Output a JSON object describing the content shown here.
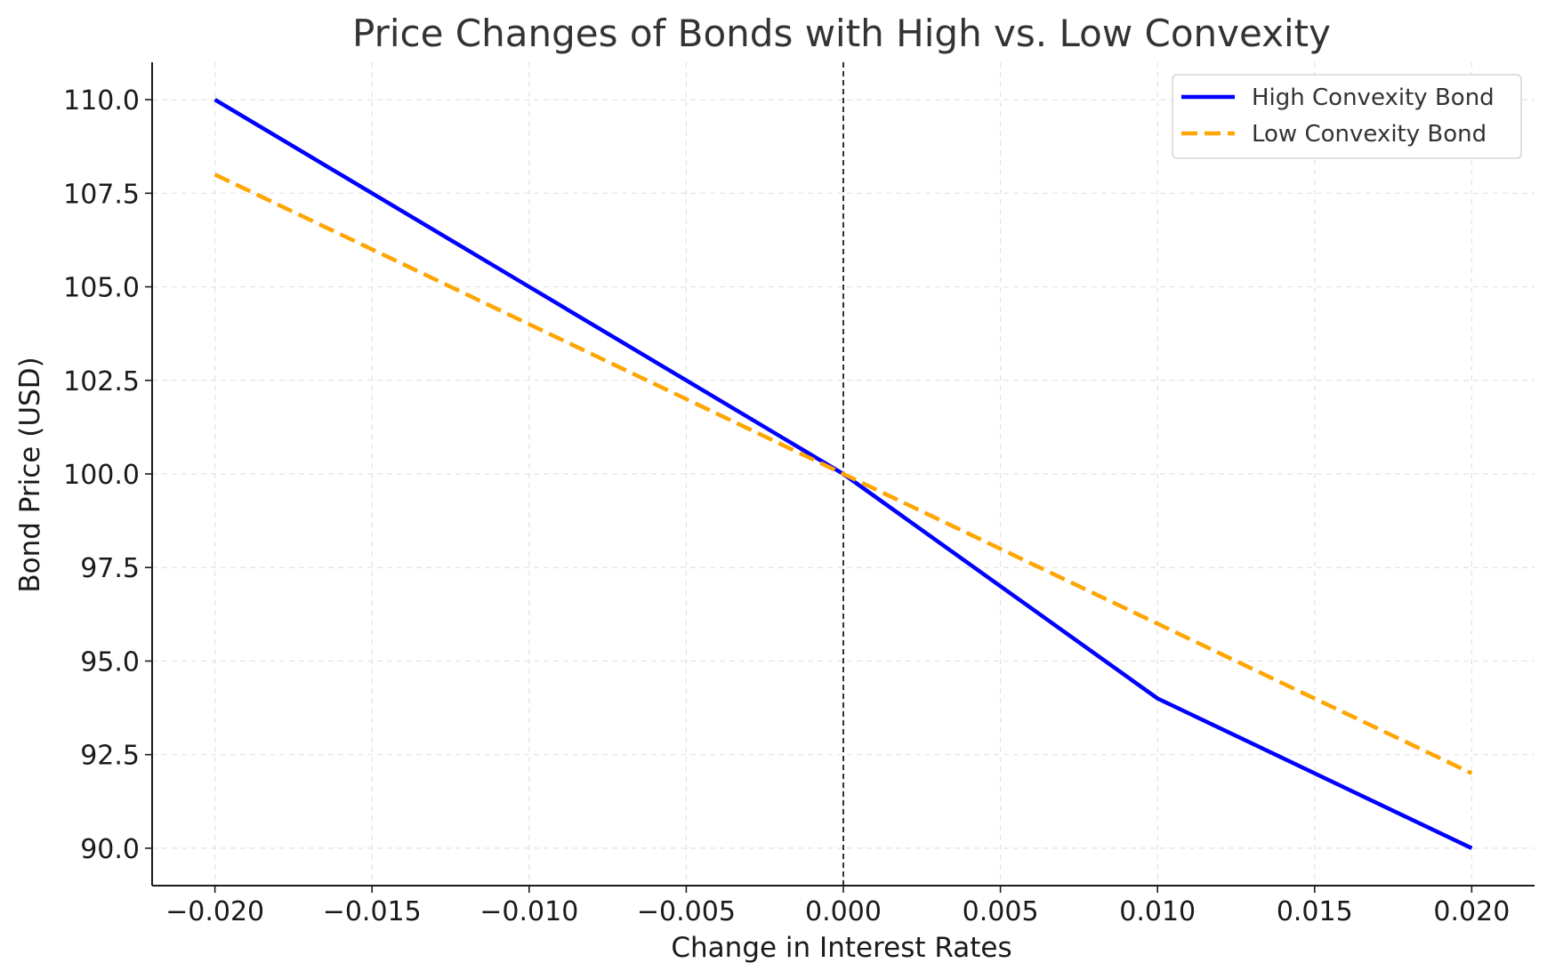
{
  "chart_data": {
    "type": "line",
    "title": "Price Changes of Bonds with High vs. Low Convexity",
    "xlabel": "Change in Interest Rates",
    "ylabel": "Bond Price (USD)",
    "x": [
      -0.02,
      -0.01,
      0.0,
      0.01,
      0.02
    ],
    "xlim": [
      -0.022,
      0.022
    ],
    "ylim": [
      89.0,
      111.0
    ],
    "x_ticks": [
      -0.02,
      -0.015,
      -0.01,
      -0.005,
      0.0,
      0.005,
      0.01,
      0.015,
      0.02
    ],
    "x_tick_labels": [
      "−0.020",
      "−0.015",
      "−0.010",
      "−0.005",
      "0.000",
      "0.005",
      "0.010",
      "0.015",
      "0.020"
    ],
    "y_ticks": [
      90.0,
      92.5,
      95.0,
      97.5,
      100.0,
      102.5,
      105.0,
      107.5,
      110.0
    ],
    "y_tick_labels": [
      "90.0",
      "92.5",
      "95.0",
      "97.5",
      "100.0",
      "102.5",
      "105.0",
      "107.5",
      "110.0"
    ],
    "grid": true,
    "vertical_reference_line": {
      "x": 0.0,
      "style": "dashed",
      "color": "#000000"
    },
    "legend_position": "top-right",
    "series": [
      {
        "name": "High Convexity Bond",
        "values": [
          110,
          105,
          100,
          94,
          90
        ],
        "color": "#0000ff",
        "line_style": "solid"
      },
      {
        "name": "Low Convexity Bond",
        "values": [
          108,
          104,
          100,
          96,
          92
        ],
        "color": "#ffa500",
        "line_style": "dashed"
      }
    ]
  }
}
